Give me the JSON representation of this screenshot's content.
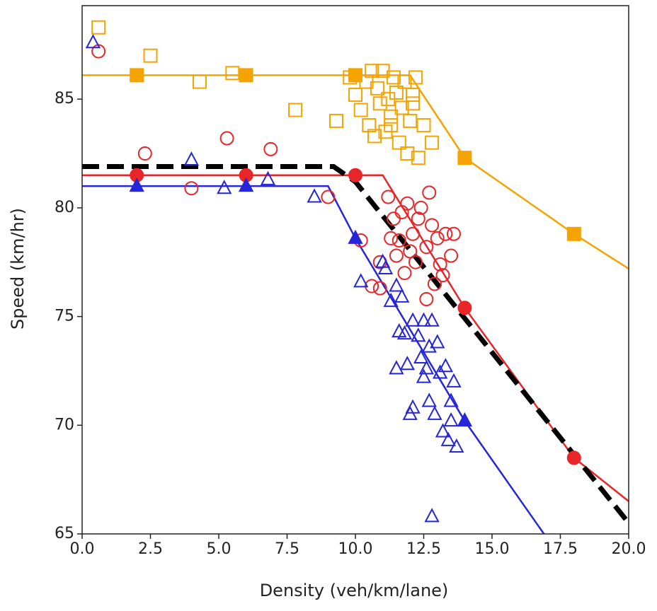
{
  "chart_data": {
    "type": "scatter",
    "xlabel": "Density (veh/km/lane)",
    "ylabel": "Speed (km/hr)",
    "xlim": [
      0,
      20
    ],
    "ylim": [
      65,
      89.3
    ],
    "xticks": [
      {
        "value": 0,
        "label": "0.0"
      },
      2.5,
      {
        "value": 5,
        "label": "5.0"
      },
      7.5,
      {
        "value": 10,
        "label": "10.0"
      },
      12.5,
      {
        "value": 15,
        "label": "15.0"
      },
      17.5,
      {
        "value": 20,
        "label": "20.0"
      }
    ],
    "yticks": [
      65,
      70,
      75,
      80,
      85
    ],
    "series": [
      {
        "color": "#f5a300",
        "marker": "square",
        "fill": "open",
        "x": [
          0.6,
          2.5,
          4.3,
          5.5,
          7.8,
          9.3,
          9.8,
          10,
          10.2,
          10.4,
          10.5,
          10.6,
          10.8,
          10.9,
          11,
          11.1,
          11.2,
          11.3,
          11.4,
          11.5,
          11.6,
          11.7,
          11.8,
          11.9,
          12,
          12.1,
          12.2,
          12.3,
          12.5,
          12.8,
          11.3,
          10.7,
          12.1
        ],
        "values": [
          88.3,
          87,
          85.8,
          86.2,
          84.5,
          84,
          86,
          85.2,
          84.5,
          85.8,
          83.8,
          86.3,
          85.5,
          84.8,
          86.3,
          83.5,
          85,
          84.2,
          86,
          85.3,
          83,
          84.6,
          85.8,
          82.5,
          84,
          85.2,
          86,
          82.3,
          83.8,
          83,
          83.8,
          83.3,
          84.8
        ]
      },
      {
        "color": "#e8262a",
        "marker": "circle",
        "fill": "open",
        "x": [
          0.6,
          2.3,
          4,
          5.3,
          6.9,
          9,
          10.2,
          10.6,
          10.9,
          11.2,
          11.3,
          11.4,
          11.5,
          11.6,
          11.7,
          11.8,
          11.9,
          12,
          12.1,
          12.2,
          12.3,
          12.4,
          12.6,
          12.7,
          12.8,
          12.9,
          13,
          13.1,
          13.3,
          13.5,
          13.6,
          12.6,
          13.2,
          10.9
        ],
        "values": [
          87.2,
          82.5,
          80.9,
          83.2,
          82.7,
          80.5,
          78.5,
          76.4,
          77.5,
          80.5,
          78.6,
          79.5,
          77.8,
          78.5,
          79.8,
          77,
          80.2,
          78,
          78.8,
          77.5,
          79.5,
          80,
          78.2,
          80.7,
          79.2,
          76.5,
          78.6,
          77.4,
          78.8,
          77.8,
          78.8,
          75.8,
          76.9,
          76.3
        ]
      },
      {
        "color": "#2525d9",
        "marker": "triangle",
        "fill": "open",
        "x": [
          0.4,
          4,
          5.2,
          6.8,
          8.5,
          10.2,
          11,
          11.1,
          11.3,
          11.5,
          11.6,
          11.7,
          11.5,
          11.9,
          12,
          12.1,
          12.1,
          12.3,
          12.4,
          12.5,
          12.6,
          12.7,
          12.7,
          12.8,
          12.9,
          13,
          13.1,
          13.2,
          13.3,
          13.4,
          13.5,
          13.5,
          13.6,
          13.7,
          12.8,
          12.5,
          11.8
        ],
        "values": [
          87.6,
          82.2,
          80.9,
          81.3,
          80.5,
          76.6,
          77.5,
          77.2,
          75.7,
          76.4,
          74.3,
          75.9,
          72.6,
          72.8,
          70.5,
          70.8,
          74.8,
          74.1,
          73.1,
          74.8,
          72.6,
          73.6,
          71.1,
          74.8,
          70.5,
          73.8,
          72.4,
          69.7,
          72.7,
          69.3,
          71.1,
          70.2,
          72,
          69,
          65.8,
          72.2,
          74.2
        ]
      },
      {
        "color": "#f5a300",
        "marker": "square",
        "fill": "filled",
        "line": "solid",
        "x": [
          0,
          2,
          6,
          10,
          12,
          14,
          18,
          20
        ],
        "values": [
          86.1,
          86.1,
          86.1,
          86.1,
          86.1,
          82.3,
          78.8,
          77.2
        ],
        "marked": [
          false,
          true,
          true,
          true,
          false,
          true,
          true,
          false
        ]
      },
      {
        "color": "#e8262a",
        "marker": "circle",
        "fill": "filled",
        "line": "solid",
        "x": [
          0,
          2,
          6,
          10,
          11,
          14,
          18,
          20
        ],
        "values": [
          81.5,
          81.5,
          81.5,
          81.5,
          81.5,
          75.4,
          68.5,
          66.5
        ],
        "marked": [
          false,
          true,
          true,
          true,
          false,
          true,
          true,
          false
        ]
      },
      {
        "color": "#2525d9",
        "marker": "triangle",
        "fill": "filled",
        "line": "solid",
        "x": [
          0,
          2,
          6,
          9,
          10,
          14,
          16.9
        ],
        "values": [
          81,
          81,
          81,
          81,
          78.6,
          70.2,
          65
        ],
        "marked": [
          false,
          true,
          true,
          false,
          true,
          true,
          false
        ]
      },
      {
        "color": "#000000",
        "marker": "none",
        "fill": "none",
        "line": "dashed",
        "x": [
          0,
          9.2,
          10,
          20
        ],
        "values": [
          81.9,
          81.9,
          81.2,
          65.5
        ]
      }
    ]
  }
}
